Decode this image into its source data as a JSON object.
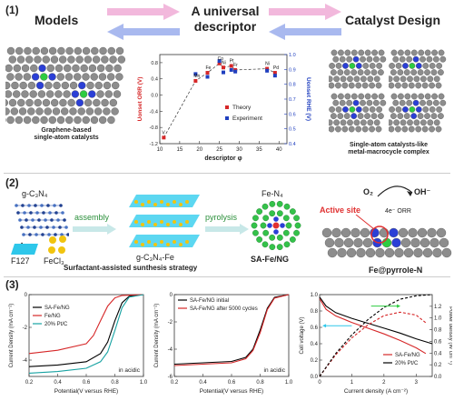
{
  "panel1": {
    "label": "(1)",
    "left_title": "Models",
    "center_title_line1": "A universal",
    "center_title_line2": "descriptor",
    "right_title": "Catalyst Design",
    "left_caption_line1": "Graphene-based",
    "left_caption_line2": "single-atom catalysts",
    "right_caption_line1": "Single-atom catalysts-like",
    "right_caption_line2": "metal-macrocycle complex",
    "chart": {
      "type": "scatter",
      "xlabel": "descriptor φ",
      "ylabel_left": "U₀ᵒⁿˢᵉᵗORR (V)",
      "ylabel_left_main": "U",
      "ylabel_left_sup": "onset",
      "ylabel_left_sub": "ORR",
      "ylabel_left_unit": "(V)",
      "ylabel_right_main": "U",
      "ylabel_right_sup": "onset",
      "ylabel_right_sub": "RHE",
      "ylabel_right_unit": "(V)",
      "xlim": [
        10,
        42
      ],
      "ylim_left": [
        -1.2,
        1.0
      ],
      "ylim_right": [
        0.4,
        1.0
      ],
      "xticks": [
        10,
        15,
        20,
        25,
        30,
        35,
        40
      ],
      "yticks_left": [
        "-1.2",
        "-0.8",
        "-0.4",
        "0.0",
        "0.4",
        "0.8"
      ],
      "yticks_right": [
        "0.4",
        "0.5",
        "0.6",
        "0.7",
        "0.8",
        "0.9",
        "1.0"
      ],
      "series": [
        {
          "name": "Theory",
          "color": "#d62728",
          "x": [
            11,
            19,
            22,
            25,
            26,
            28,
            29,
            37,
            39
          ],
          "y": [
            -1.05,
            0.35,
            0.55,
            0.78,
            0.68,
            0.72,
            0.62,
            0.65,
            0.55
          ]
        },
        {
          "name": "Experiment",
          "color": "#1f3fbf",
          "x": [
            19,
            22,
            25,
            26,
            28,
            29,
            37,
            39
          ],
          "y": [
            0.52,
            0.45,
            0.84,
            0.56,
            0.62,
            0.58,
            0.6,
            0.48
          ]
        }
      ],
      "point_labels": [
        "V",
        "Mn",
        "Fe",
        "Co",
        "Ni",
        "Pt",
        "Fr",
        "Ni",
        "Pd"
      ],
      "legend": [
        "Theory",
        "Experiment"
      ]
    }
  },
  "panel2": {
    "label": "(2)",
    "g_c3n4": "g-C₃N₄",
    "assembly": "assembly",
    "pyrolysis": "pyrolysis",
    "f127": "F127",
    "fecl3": "FeCl₃",
    "gc3n4fe": "g-C₃N₄-Fe",
    "fen4": "Fe-N₄",
    "safeng": "SA-Fe/NG",
    "strategy": "Surfactant-assisted sunthesis strategy",
    "active_site": "Active site",
    "o2": "O₂",
    "oh": "OH⁻",
    "orr": "4e⁻ ORR",
    "fe_pyrrole": "Fe@pyrrole-N"
  },
  "panel3": {
    "label": "(3)",
    "chart_data": [
      {
        "type": "line",
        "ylabel": "Current Density (mA cm⁻²)",
        "xlabel": "Potential(V versus RHE)",
        "annotation": "in acidic",
        "xlim": [
          0.2,
          1.0
        ],
        "ylim": [
          -5,
          0
        ],
        "xticks": [
          "0.2",
          "0.4",
          "0.6",
          "0.8",
          "1.0"
        ],
        "yticks": [
          "-4",
          "-2",
          "0"
        ],
        "series": [
          {
            "name": "SA-Fe/NG",
            "color": "#000000",
            "x": [
              0.2,
              0.4,
              0.6,
              0.7,
              0.75,
              0.8,
              0.85,
              0.9,
              1.0
            ],
            "y": [
              -4.4,
              -4.3,
              -4.1,
              -3.6,
              -2.9,
              -1.6,
              -0.5,
              -0.1,
              0
            ]
          },
          {
            "name": "Fe/NG",
            "color": "#d62728",
            "x": [
              0.2,
              0.4,
              0.6,
              0.65,
              0.7,
              0.75,
              0.8,
              0.85,
              1.0
            ],
            "y": [
              -3.6,
              -3.4,
              -3.0,
              -2.5,
              -1.6,
              -0.7,
              -0.2,
              -0.05,
              0
            ]
          },
          {
            "name": "20% Pt/C",
            "color": "#17a2a2",
            "x": [
              0.2,
              0.4,
              0.6,
              0.7,
              0.75,
              0.8,
              0.85,
              0.9,
              1.0
            ],
            "y": [
              -4.8,
              -4.7,
              -4.5,
              -4.1,
              -3.5,
              -2.2,
              -0.8,
              -0.15,
              0
            ]
          }
        ],
        "legend": [
          "SA-Fe/NG",
          "Fe/NG",
          "20% Pt/C"
        ]
      },
      {
        "type": "line",
        "ylabel": "Current Density (mA cm⁻²)",
        "xlabel": "Potential(V versus RHE)",
        "annotation": "in acidic",
        "xlim": [
          0.2,
          1.0
        ],
        "ylim": [
          -6,
          0
        ],
        "xticks": [
          "0.2",
          "0.4",
          "0.6",
          "0.8",
          "1.0"
        ],
        "yticks": [
          "-6",
          "-4",
          "-2",
          "0"
        ],
        "series": [
          {
            "name": "SA-Fe/NG initial",
            "color": "#000000",
            "x": [
              0.2,
              0.4,
              0.6,
              0.7,
              0.75,
              0.8,
              0.85,
              0.9,
              1.0
            ],
            "y": [
              -5.1,
              -5.0,
              -4.9,
              -4.6,
              -4.0,
              -2.6,
              -1.0,
              -0.2,
              0
            ]
          },
          {
            "name": "SA-Fe/NG after 5000 cycles",
            "color": "#d62728",
            "x": [
              0.2,
              0.4,
              0.6,
              0.7,
              0.75,
              0.8,
              0.85,
              0.9,
              1.0
            ],
            "y": [
              -5.2,
              -5.1,
              -5.0,
              -4.7,
              -4.1,
              -2.8,
              -1.1,
              -0.25,
              0
            ]
          }
        ],
        "legend": [
          "SA-Fe/NG initial",
          "SA-Fe/NG after 5000 cycles"
        ]
      },
      {
        "type": "line",
        "ylabel": "Cell voltage (V)",
        "ylabel_right": "Power density (W cm⁻²)",
        "xlabel": "Current density (A cm⁻²)",
        "xlim": [
          0,
          3.5
        ],
        "ylim": [
          0.0,
          1.0
        ],
        "ylim_right": [
          0.0,
          1.4
        ],
        "xticks": [
          "0",
          "1",
          "2",
          "3"
        ],
        "yticks": [
          "0.0",
          "0.2",
          "0.4",
          "0.6",
          "0.8",
          "1.0"
        ],
        "yticks_right": [
          "0.0",
          "0.2",
          "0.4",
          "0.6",
          "0.8",
          "1.0",
          "1.2"
        ],
        "series": [
          {
            "name": "SA-Fe/NG",
            "color": "#d62728",
            "kind": "voltage",
            "x": [
              0,
              0.2,
              0.5,
              1,
              1.5,
              2,
              2.5,
              3,
              3.3
            ],
            "y": [
              0.95,
              0.82,
              0.74,
              0.66,
              0.59,
              0.52,
              0.44,
              0.35,
              0.28
            ]
          },
          {
            "name": "20% Pt/C",
            "color": "#000000",
            "kind": "voltage",
            "x": [
              0,
              0.2,
              0.5,
              1,
              1.5,
              2,
              2.5,
              3,
              3.5
            ],
            "y": [
              0.97,
              0.86,
              0.78,
              0.71,
              0.65,
              0.59,
              0.53,
              0.46,
              0.4
            ]
          },
          {
            "name": "SA-Fe/NG power",
            "color": "#d62728",
            "kind": "power",
            "x": [
              0,
              0.5,
              1,
              1.5,
              2,
              2.5,
              3,
              3.3
            ],
            "y": [
              0,
              0.37,
              0.66,
              0.88,
              1.04,
              1.1,
              1.05,
              0.92
            ]
          },
          {
            "name": "20% Pt/C power",
            "color": "#000000",
            "kind": "power",
            "x": [
              0,
              0.5,
              1,
              1.5,
              2,
              2.5,
              3,
              3.5
            ],
            "y": [
              0,
              0.39,
              0.71,
              0.97,
              1.18,
              1.32,
              1.38,
              1.4
            ]
          }
        ],
        "legend": [
          "SA-Fe/NG",
          "20% Pt/C"
        ]
      }
    ]
  }
}
